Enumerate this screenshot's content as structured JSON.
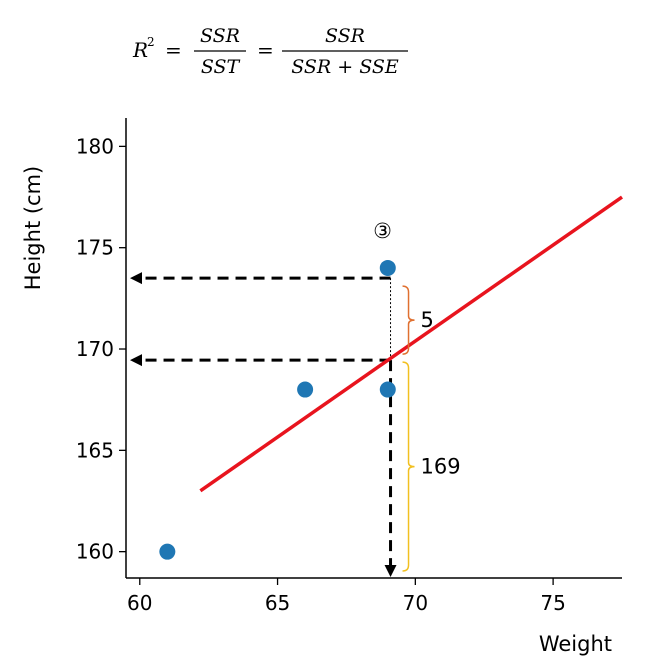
{
  "formula": {
    "lhs": "R",
    "lhs_sup": "2",
    "equals": "=",
    "frac1_num": "SSR",
    "frac1_den": "SST",
    "frac2_num": "SSR",
    "frac2_den": "SSR + SSE"
  },
  "chart_data": {
    "type": "scatter",
    "xlabel": "Weight",
    "ylabel": "Height (cm)",
    "xlim": [
      59.5,
      77.5
    ],
    "ylim": [
      158.7,
      181.4
    ],
    "xticks": [
      60,
      65,
      70,
      75
    ],
    "yticks": [
      160,
      165,
      170,
      175,
      180
    ],
    "points": [
      {
        "x": 61,
        "y": 160
      },
      {
        "x": 66,
        "y": 168
      },
      {
        "x": 69,
        "y": 168
      },
      {
        "x": 69,
        "y": 174
      }
    ],
    "regression_line": {
      "x": [
        62.2,
        77.5
      ],
      "y": [
        163.0,
        177.5
      ],
      "color": "#e8141e"
    },
    "point_color": "#1f77b4",
    "annotations": {
      "marker": "③",
      "residual_label": "5",
      "predicted_label": "169"
    },
    "guide_lines": {
      "x": 69.1,
      "actual_y": 173.5,
      "predicted_y": 169.45
    },
    "colors": {
      "residual_brace": "#e07030",
      "predicted_brace": "#f2c020"
    }
  }
}
